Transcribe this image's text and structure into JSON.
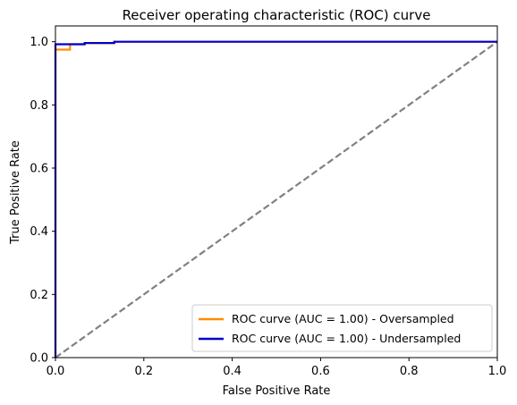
{
  "chart_data": {
    "type": "line",
    "title": "Receiver operating characteristic (ROC) curve",
    "xlabel": "False Positive Rate",
    "ylabel": "True Positive Rate",
    "xlim": [
      0.0,
      1.0
    ],
    "ylim": [
      0.0,
      1.05
    ],
    "xticks": [
      0.0,
      0.2,
      0.4,
      0.6,
      0.8,
      1.0
    ],
    "yticks": [
      0.0,
      0.2,
      0.4,
      0.6,
      0.8,
      1.0
    ],
    "xtick_labels": [
      "0.0",
      "0.2",
      "0.4",
      "0.6",
      "0.8",
      "1.0"
    ],
    "ytick_labels": [
      "0.0",
      "0.2",
      "0.4",
      "0.6",
      "0.8",
      "1.0"
    ],
    "grid": false,
    "legend_position": "lower-right",
    "series": [
      {
        "name": "ROC curve (AUC = 1.00) - Oversampled",
        "color": "#ff8c00",
        "style": "solid",
        "x": [
          0.0,
          0.0,
          0.0,
          0.033,
          0.033,
          0.066,
          0.066,
          0.133,
          0.133,
          1.0
        ],
        "y": [
          0.0,
          0.975,
          0.975,
          0.975,
          0.992,
          0.992,
          0.995,
          0.995,
          1.0,
          1.0
        ]
      },
      {
        "name": "ROC curve (AUC = 1.00) - Undersampled",
        "color": "#0000cd",
        "style": "solid",
        "x": [
          0.0,
          0.0,
          0.066,
          0.066,
          0.133,
          0.133,
          1.0
        ],
        "y": [
          0.0,
          0.992,
          0.992,
          0.996,
          0.996,
          1.0,
          1.0
        ]
      },
      {
        "color": "#808080",
        "style": "dashed",
        "x": [
          0.0,
          1.0
        ],
        "y": [
          0.0,
          1.0
        ]
      }
    ],
    "legend": [
      {
        "label": "ROC curve (AUC = 1.00) - Oversampled",
        "color": "#ff8c00"
      },
      {
        "label": "ROC curve (AUC = 1.00) - Undersampled",
        "color": "#0000cd"
      }
    ]
  }
}
